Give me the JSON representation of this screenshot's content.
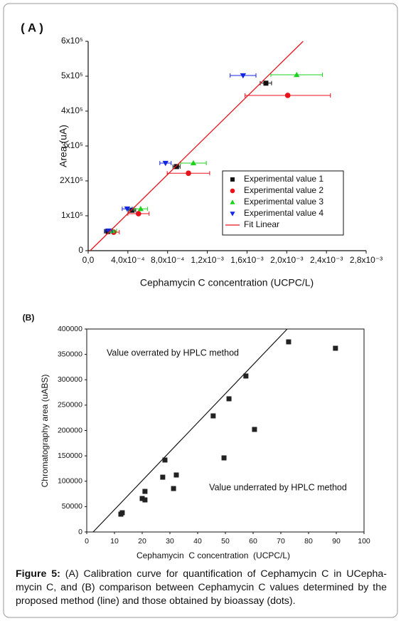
{
  "chart_data": [
    {
      "type": "scatter",
      "title": "( A )",
      "x_label": "Cephamycin C concentration (UCPC/L)",
      "y_label": "Area (uA)",
      "xlim": [
        0,
        0.0028
      ],
      "ylim": [
        0,
        600000
      ],
      "xticks": [
        {
          "value": 0,
          "label": "0,0"
        },
        {
          "value": 0.0004,
          "label": "4,0x10⁻⁴"
        },
        {
          "value": 0.0008,
          "label": "8,0x10⁻⁴"
        },
        {
          "value": 0.0012,
          "label": "1,2x10⁻³"
        },
        {
          "value": 0.0016,
          "label": "1,6x10⁻³"
        },
        {
          "value": 0.002,
          "label": "2,0x10⁻³"
        },
        {
          "value": 0.0024,
          "label": "2,4x10⁻³"
        },
        {
          "value": 0.0028,
          "label": "2,8x10⁻³"
        }
      ],
      "yticks": [
        0,
        {
          "value": 100000,
          "label": "1x10⁵"
        },
        {
          "value": 200000,
          "label": "2X10⁵"
        },
        {
          "value": 300000,
          "label": "3x10⁵"
        },
        {
          "value": 400000,
          "label": "4x10⁵"
        },
        {
          "value": 500000,
          "label": "5x10⁵"
        },
        {
          "value": 600000,
          "label": "6x10⁵"
        }
      ],
      "frame": "axes",
      "legend": "lower right",
      "series": [
        {
          "name": "Experimental value 1",
          "color": "#111111",
          "marker": "square",
          "x": [
            0.0002,
            0.000443,
            0.00089,
            0.00179
          ],
          "values": [
            55000,
            116000,
            241000,
            480000
          ],
          "xerr": [
            3.6e-05,
            3.6e-05,
            3.6e-05,
            5.7e-05
          ]
        },
        {
          "name": "Experimental value 2",
          "color": "#e8121b",
          "marker": "circle",
          "x": [
            0.000257,
            0.000507,
            0.00101,
            0.00201
          ],
          "values": [
            53000,
            106000,
            222000,
            445000
          ],
          "xerr": [
            5.7e-05,
            0.000107,
            0.000214,
            0.00043
          ]
        },
        {
          "name": "Experimental value 3",
          "color": "#1fd11f",
          "marker": "triangle-up",
          "x": [
            0.000243,
            0.000529,
            0.00106,
            0.0021
          ],
          "values": [
            57000,
            120000,
            251000,
            504000
          ],
          "xerr": [
            4.3e-05,
            7e-05,
            0.00013,
            0.00026
          ]
        },
        {
          "name": "Experimental value 4",
          "color": "#1427e0",
          "marker": "triangle-down",
          "x": [
            0.000207,
            0.000393,
            0.000779,
            0.00156
          ],
          "values": [
            57000,
            120000,
            251000,
            502000
          ],
          "xerr": [
            3.6e-05,
            5e-05,
            5.7e-05,
            0.00013
          ]
        },
        {
          "name": "Fit Linear",
          "color": "#e8121b",
          "x": [
            2e-05,
            0.002165
          ],
          "values": [
            0,
            600000
          ]
        }
      ]
    },
    {
      "type": "scatter",
      "title": "(B)",
      "x_label": "Cephamycin  C concentration  (UCPC/L)",
      "y_label": "Chromatography area (uABS)",
      "xlim": [
        0,
        100
      ],
      "ylim": [
        0,
        400000
      ],
      "xticks": [
        0,
        10,
        20,
        30,
        40,
        50,
        60,
        70,
        80,
        90,
        100
      ],
      "yticks": [
        0,
        50000,
        100000,
        150000,
        200000,
        250000,
        300000,
        350000,
        400000
      ],
      "frame": "box",
      "color": "#222222",
      "marker": "square",
      "x": [
        12.3,
        12.8,
        20,
        21,
        21,
        27.4,
        28.2,
        31.3,
        32.3,
        45.6,
        49.5,
        51.3,
        57.4,
        60.5,
        72.8,
        89.7
      ],
      "values": [
        35100,
        37900,
        66000,
        63200,
        80000,
        108000,
        141800,
        85600,
        112300,
        228800,
        146000,
        262500,
        307400,
        202100,
        374700,
        362100
      ],
      "reference_line": {
        "color": "#111111",
        "x": [
          2.3,
          72.3
        ],
        "values": [
          0,
          400000
        ]
      },
      "annotations": [
        "Value overrated by HPLC method",
        "Value underrated by HPLC method"
      ]
    }
  ],
  "caption": {
    "label": "Figure 5:",
    "text": " (A) Calibration curve for quantification of Cephamycin C in UCepha-mycin C, and (B) comparison between Cephamycin C values determined by the proposed method (line) and those obtained by bioassay (dots)."
  }
}
